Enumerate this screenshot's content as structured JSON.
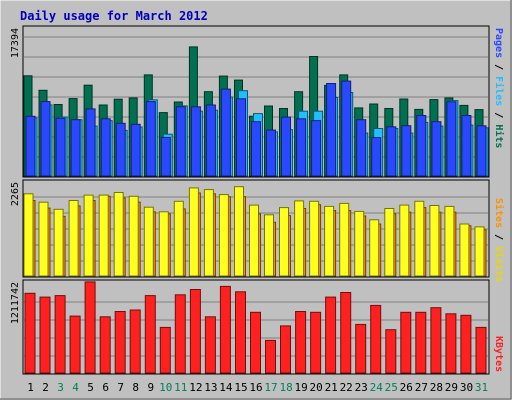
{
  "chart_data": {
    "type": "bar",
    "title": "Daily usage for March 2012",
    "categories": [
      "1",
      "2",
      "3",
      "4",
      "5",
      "6",
      "7",
      "8",
      "9",
      "10",
      "11",
      "12",
      "13",
      "14",
      "15",
      "16",
      "17",
      "18",
      "19",
      "20",
      "21",
      "22",
      "23",
      "24",
      "25",
      "26",
      "27",
      "28",
      "29",
      "30",
      "31"
    ],
    "weekend_days": [
      "3",
      "4",
      "10",
      "11",
      "17",
      "18",
      "24",
      "25",
      "31"
    ],
    "panels": [
      {
        "id": "hits",
        "ymax_label": "17394",
        "ymax": 17394,
        "series": [
          {
            "name": "Pages",
            "color": "#2a48ff",
            "values": [
              6970,
              8690,
              6750,
              6570,
              7830,
              6680,
              6150,
              6040,
              8690,
              4510,
              8080,
              8080,
              8290,
              10150,
              9010,
              6340,
              5360,
              6880,
              6680,
              6470,
              10800,
              11080,
              6570,
              4480,
              5740,
              5870,
              7060,
              6340,
              8660,
              7060,
              5860
            ]
          },
          {
            "name": "Files",
            "color": "#20c0ff",
            "values": [
              6770,
              8300,
              6890,
              6570,
              5820,
              6470,
              5320,
              5720,
              8900,
              4880,
              8180,
              7570,
              7680,
              9220,
              9960,
              7290,
              5150,
              5420,
              7570,
              7570,
              9160,
              9750,
              5020,
              5540,
              5540,
              5020,
              6260,
              5820,
              8800,
              5940,
              5630
            ]
          },
          {
            "name": "Hits",
            "color": "#007050",
            "values": [
              11700,
              10000,
              8350,
              9030,
              10600,
              8290,
              8970,
              9110,
              11800,
              7400,
              8640,
              15070,
              9840,
              11660,
              11200,
              6980,
              8170,
              7880,
              9840,
              13950,
              10580,
              11800,
              7950,
              8400,
              7880,
              8990,
              7780,
              8920,
              9110,
              8240,
              7750
            ]
          }
        ]
      },
      {
        "id": "visits",
        "ymax_label": "2265",
        "ymax": 2265,
        "series": [
          {
            "name": "Visits",
            "color": "#ffff20",
            "values": [
              1960,
              1760,
              1590,
              1800,
              1930,
              1930,
              1990,
              1900,
              1640,
              1530,
              1780,
              2100,
              2060,
              1940,
              2130,
              1690,
              1460,
              1630,
              1790,
              1780,
              1660,
              1730,
              1540,
              1340,
              1610,
              1690,
              1780,
              1680,
              1660,
              1240,
              1170
            ]
          },
          {
            "name": "Sites",
            "color": "#ff9000",
            "values": [
              1800,
              1620,
              1420,
              1670,
              1800,
              1900,
              1860,
              1760,
              1530,
              1480,
              1600,
              1980,
              1960,
              1890,
              1890,
              1480,
              1280,
              1440,
              1610,
              1700,
              1560,
              1560,
              1430,
              1240,
              1480,
              1520,
              1630,
              1520,
              1520,
              1200,
              1100
            ]
          }
        ]
      },
      {
        "id": "kbytes",
        "ymax_label": "1211742",
        "ymax": 1211742,
        "series": [
          {
            "name": "KBytes",
            "color": "#ff2020",
            "values": [
              1050000,
              1000000,
              1020000,
              750000,
              1200000,
              740000,
              810000,
              830000,
              1020000,
              600000,
              1030000,
              1100000,
              740000,
              1140000,
              1070000,
              800000,
              430000,
              620000,
              810000,
              800000,
              1000000,
              1060000,
              640000,
              890000,
              570000,
              800000,
              800000,
              860000,
              780000,
              760000,
              600000
            ]
          }
        ]
      }
    ],
    "side_labels": {
      "hits": [
        {
          "text": "Pages",
          "color": "#2a48ff"
        },
        {
          "text": " / ",
          "color": "#000000"
        },
        {
          "text": "Files",
          "color": "#20c0ff"
        },
        {
          "text": " / ",
          "color": "#000000"
        },
        {
          "text": "Hits",
          "color": "#007050"
        }
      ],
      "visits": [
        {
          "text": "Sites",
          "color": "#ff9000"
        },
        {
          "text": " / ",
          "color": "#000000"
        },
        {
          "text": "Visits",
          "color": "#e8d800"
        }
      ],
      "kbytes": [
        {
          "text": "KBytes",
          "color": "#ff2020"
        }
      ]
    },
    "colors": {
      "background": "#c0c0c0",
      "grid": "#808080",
      "weekday_label": "#000000",
      "weekend_label": "#00805c"
    }
  }
}
